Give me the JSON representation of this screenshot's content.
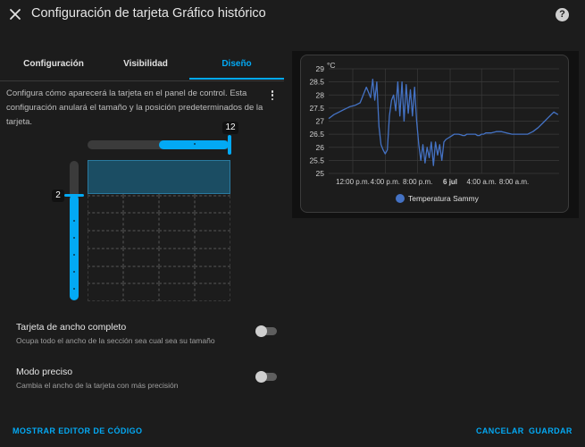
{
  "header": {
    "title": "Configuración de tarjeta Gráfico histórico",
    "close_icon": "close-icon",
    "help_icon": "help-icon",
    "help_glyph": "?"
  },
  "tabs": [
    {
      "label": "Configuración",
      "active": false
    },
    {
      "label": "Visibilidad",
      "active": false
    },
    {
      "label": "Diseño",
      "active": true
    }
  ],
  "layout": {
    "description": "Configura cómo aparecerá la tarjeta en el panel de control. Esta configuración anulará el tamaño y la posición predeterminados de la tarjeta.",
    "columns_value": "12",
    "rows_value": "2",
    "columns_fraction": 1.0,
    "rows_fraction": 0.25
  },
  "options": {
    "full_width": {
      "title": "Tarjeta de ancho completo",
      "subtitle": "Ocupa todo el ancho de la sección sea cual sea su tamaño",
      "enabled": false
    },
    "precise": {
      "title": "Modo preciso",
      "subtitle": "Cambia el ancho de la tarjeta con más precisión",
      "enabled": false
    }
  },
  "footer": {
    "show_code": "MOSTRAR EDITOR DE CÓDIGO",
    "cancel": "CANCELAR",
    "save": "GUARDAR"
  },
  "colors": {
    "accent": "#03a9f4",
    "series": "#4472c4",
    "background": "#1c1c1c"
  },
  "chart_data": {
    "type": "line",
    "unit": "°C",
    "y_ticks": [
      "29",
      "28.5",
      "28",
      "27.5",
      "27",
      "26.5",
      "26",
      "25.5",
      "25"
    ],
    "ylim": [
      25,
      29
    ],
    "x_ticks": [
      "12:00 p.m.",
      "4:00 p.m.",
      "8:00 p.m.",
      "6 jul",
      "4:00 a.m.",
      "8:00 a.m."
    ],
    "legend": [
      "Temperatura Sammy"
    ],
    "series": [
      {
        "name": "Temperatura Sammy",
        "x": [
          0,
          0.5,
          1,
          1.5,
          2,
          2.5,
          3,
          3.2,
          3.4,
          3.6,
          3.8,
          4,
          4.2,
          4.4,
          4.6,
          4.8,
          5,
          5.2,
          5.4,
          5.6,
          5.8,
          6,
          6.2,
          6.4,
          6.6,
          6.8,
          7,
          7.2,
          7.4,
          7.6,
          7.8,
          8,
          8.2,
          8.4,
          8.6,
          8.8,
          9,
          9.2,
          9.4,
          9.6,
          9.8,
          10,
          10.2,
          10.4,
          10.6,
          10.8,
          11,
          11.2,
          11.4,
          11.6,
          11.8,
          12,
          12.2,
          12.4,
          12.6,
          12.8,
          13,
          13.2,
          13.4,
          13.6,
          13.8,
          14,
          14.2,
          14.4,
          14.6,
          14.8,
          15,
          15.5,
          16,
          16.5,
          17,
          17.5,
          18,
          18.5,
          19,
          19.5,
          20,
          20.5,
          21,
          21.5,
          21.9
        ],
        "values": [
          27.1,
          27.25,
          27.35,
          27.45,
          27.55,
          27.6,
          27.7,
          27.9,
          28.1,
          28.3,
          28.1,
          27.9,
          28.6,
          27.8,
          28.5,
          26.8,
          26.1,
          25.9,
          25.75,
          25.9,
          27.2,
          27.8,
          28.0,
          27.4,
          28.5,
          27.2,
          28.5,
          27.0,
          28.4,
          27.3,
          28.2,
          27.2,
          28.3,
          27.0,
          26.1,
          25.5,
          26.1,
          25.4,
          26.0,
          25.6,
          26.2,
          25.3,
          26.2,
          25.7,
          26.1,
          25.5,
          26.2,
          26.3,
          26.35,
          26.4,
          26.45,
          26.5,
          26.5,
          26.5,
          26.48,
          26.45,
          26.45,
          26.5,
          26.5,
          26.5,
          26.5,
          26.5,
          26.45,
          26.45,
          26.5,
          26.5,
          26.55,
          26.55,
          26.6,
          26.6,
          26.55,
          26.5,
          26.5,
          26.5,
          26.5,
          26.6,
          26.75,
          26.95,
          27.15,
          27.35,
          27.25
        ]
      }
    ],
    "x_range": [
      0,
      22
    ],
    "x_tick_positions": [
      2.3,
      5.4,
      8.5,
      11.6,
      14.6,
      17.7
    ],
    "grid": true,
    "legend_position": "bottom-center"
  }
}
